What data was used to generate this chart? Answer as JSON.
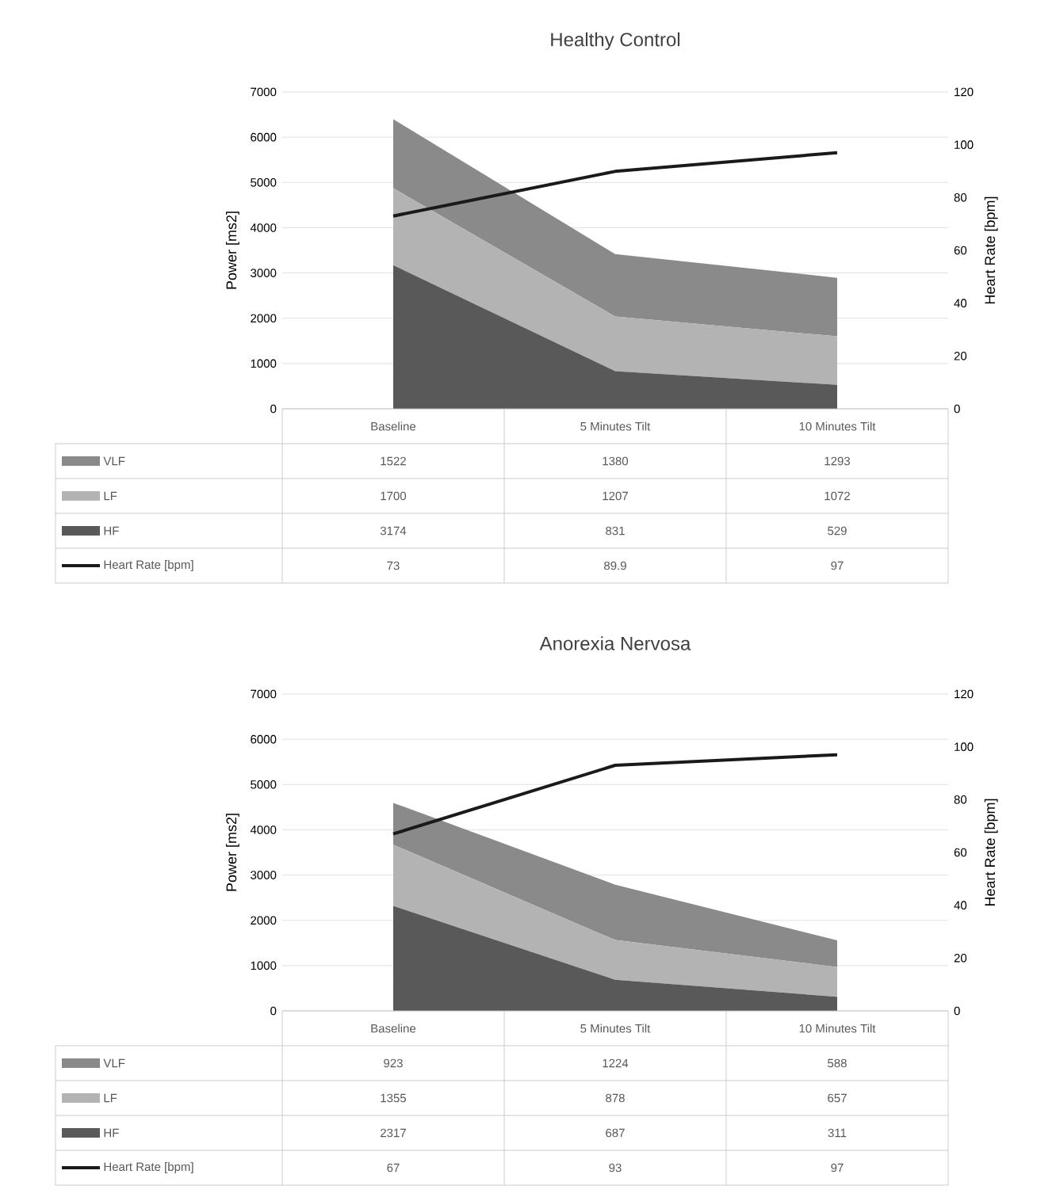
{
  "chart_data": [
    {
      "type": "area",
      "title": "Healthy Control",
      "ylabel": "Power [ms2]",
      "y2label": "Heart Rate [bpm]",
      "categories": [
        "Baseline",
        "5 Minutes Tilt",
        "10 Minutes Tilt"
      ],
      "stacked": true,
      "series": [
        {
          "name": "HF",
          "color": "#595959",
          "values": [
            3174,
            831,
            529
          ]
        },
        {
          "name": "LF",
          "color": "#b3b3b3",
          "values": [
            1700,
            1207,
            1072
          ]
        },
        {
          "name": "VLF",
          "color": "#8a8a8a",
          "values": [
            1522,
            1380,
            1293
          ]
        },
        {
          "name": "Heart Rate [bpm]",
          "type": "line",
          "axis": "y2",
          "color": "#1a1a1a",
          "values": [
            73,
            89.9,
            97
          ]
        }
      ],
      "ylim": [
        0,
        7000
      ],
      "yticks": [
        0,
        1000,
        2000,
        3000,
        4000,
        5000,
        6000,
        7000
      ],
      "y2lim": [
        0,
        120
      ],
      "y2ticks": [
        0,
        20,
        40,
        60,
        80,
        100,
        120
      ],
      "grid": "y",
      "legend": "bottom",
      "data_labels": true,
      "marker": "none",
      "line_style": "solid"
    },
    {
      "type": "area",
      "title": "Anorexia Nervosa",
      "ylabel": "Power [ms2]",
      "y2label": "Heart Rate [bpm]",
      "categories": [
        "Baseline",
        "5 Minutes Tilt",
        "10 Minutes Tilt"
      ],
      "stacked": true,
      "series": [
        {
          "name": "HF",
          "color": "#595959",
          "values": [
            2317,
            687,
            311
          ]
        },
        {
          "name": "LF",
          "color": "#b3b3b3",
          "values": [
            1355,
            878,
            657
          ]
        },
        {
          "name": "VLF",
          "color": "#8a8a8a",
          "values": [
            923,
            1224,
            588
          ]
        },
        {
          "name": "Heart Rate [bpm]",
          "type": "line",
          "axis": "y2",
          "color": "#1a1a1a",
          "values": [
            67,
            93,
            97
          ]
        }
      ],
      "ylim": [
        0,
        7000
      ],
      "yticks": [
        0,
        1000,
        2000,
        3000,
        4000,
        5000,
        6000,
        7000
      ],
      "y2lim": [
        0,
        120
      ],
      "y2ticks": [
        0,
        20,
        40,
        60,
        80,
        100,
        120
      ],
      "grid": "y",
      "legend": "bottom",
      "data_labels": true,
      "marker": "none",
      "line_style": "solid"
    }
  ]
}
